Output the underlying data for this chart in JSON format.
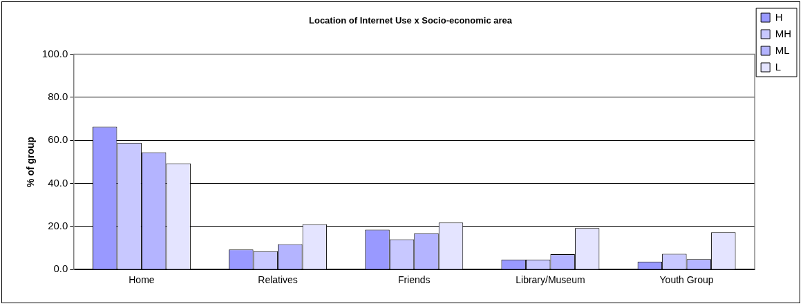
{
  "chart_data": {
    "type": "bar",
    "title": "Location of Internet Use x Socio-economic area",
    "ylabel": "% of group",
    "categories": [
      "Home",
      "Relatives",
      "Friends",
      "Library/Museum",
      "Youth Group"
    ],
    "series": [
      {
        "name": "H",
        "color": "#9999ff",
        "values": [
          66.3,
          9.3,
          18.5,
          4.6,
          3.7
        ]
      },
      {
        "name": "MH",
        "color": "#c8c8ff",
        "values": [
          58.9,
          8.5,
          14.0,
          4.6,
          7.3
        ]
      },
      {
        "name": "ML",
        "color": "#b4b4ff",
        "values": [
          54.5,
          11.8,
          16.8,
          7.1,
          4.8
        ]
      },
      {
        "name": "L",
        "color": "#e4e4ff",
        "values": [
          49.3,
          21.0,
          21.8,
          19.2,
          17.3
        ]
      }
    ],
    "ylim": [
      0,
      100
    ],
    "yticks": [
      {
        "value": 0,
        "label": "0.0"
      },
      {
        "value": 20,
        "label": "20.0"
      },
      {
        "value": 40,
        "label": "40.0"
      },
      {
        "value": 60,
        "label": "60.0"
      },
      {
        "value": 80,
        "label": "80.0"
      },
      {
        "value": 100,
        "label": "100.0"
      }
    ],
    "grid": "y",
    "legend": "right"
  }
}
